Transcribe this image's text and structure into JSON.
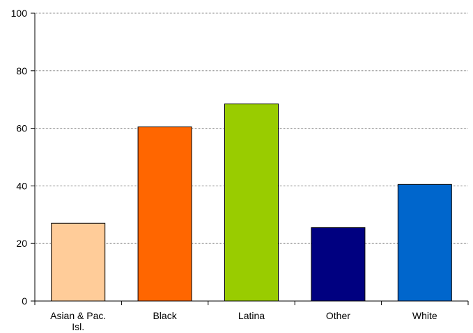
{
  "chart_data": {
    "type": "bar",
    "categories": [
      "Asian & Pac. Isl.",
      "Black",
      "Latina",
      "Other",
      "White"
    ],
    "category_label_lines": [
      [
        "Asian & Pac.",
        "Isl."
      ],
      [
        "Black"
      ],
      [
        "Latina"
      ],
      [
        "Other"
      ],
      [
        "White"
      ]
    ],
    "values": [
      27,
      60.5,
      68.5,
      25.5,
      40.5
    ],
    "colors": [
      "#FFCC99",
      "#FF6600",
      "#99CC00",
      "#000080",
      "#0066CC"
    ],
    "title": "",
    "xlabel": "",
    "ylabel": "",
    "ylim": [
      0,
      100
    ],
    "yticks": [
      0,
      20,
      40,
      60,
      80,
      100
    ],
    "grid": true,
    "grid_color": "#808080",
    "legend": "none"
  }
}
